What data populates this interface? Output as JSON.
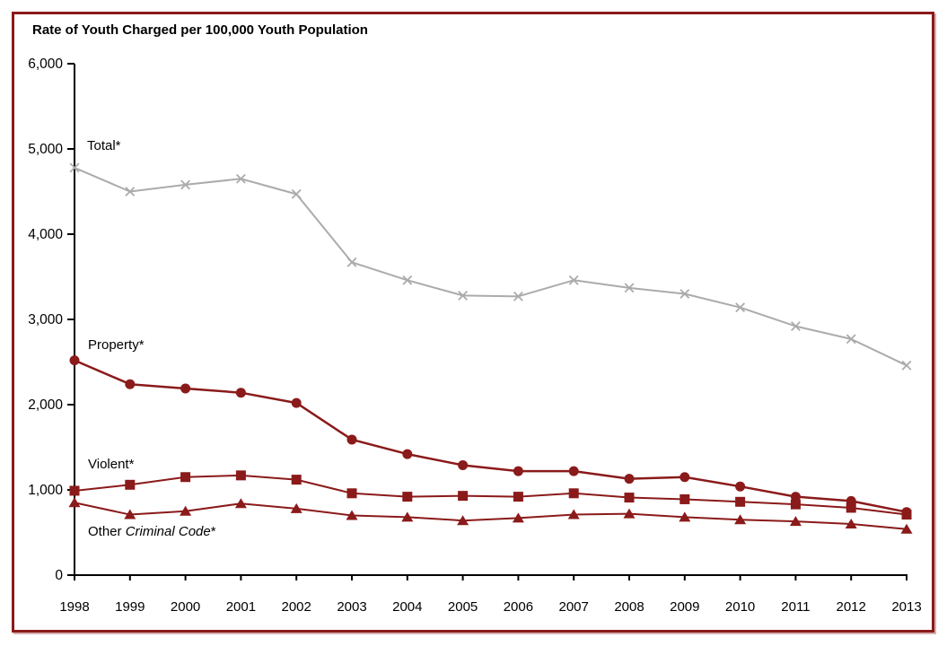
{
  "chart": {
    "title": "Rate of Youth Charged per 100,000 Youth Population",
    "border_color": "#8B1A1A",
    "axis_color": "#000000",
    "background_color": "#ffffff"
  },
  "labels": {
    "total": "Total*",
    "property": "Property*",
    "violent": "Violent*",
    "other_prefix": "Other ",
    "other_italic": "Criminal Code",
    "other_suffix": "*"
  },
  "chart_data": {
    "type": "line",
    "title": "Rate of Youth Charged per 100,000 Youth Population",
    "xlabel": "",
    "ylabel": "Rate of Youth Charged per 100,000 Youth Population",
    "grid": false,
    "legend_position": "inline-annotations",
    "ylim": [
      0,
      6000
    ],
    "y_tick_values": [
      0,
      1000,
      2000,
      3000,
      4000,
      5000,
      6000
    ],
    "y_tick_labels": [
      "0",
      "1,000",
      "2,000",
      "3,000",
      "4,000",
      "5,000",
      "6,000"
    ],
    "categories": [
      "1998",
      "1999",
      "2000",
      "2001",
      "2002",
      "2003",
      "2004",
      "2005",
      "2006",
      "2007",
      "2008",
      "2009",
      "2010",
      "2011",
      "2012",
      "2013"
    ],
    "series": [
      {
        "name": "Total*",
        "marker": "x",
        "color": "#ABABAB",
        "line_width": 2,
        "values": [
          4780,
          4500,
          4580,
          4650,
          4470,
          3670,
          3460,
          3280,
          3270,
          3460,
          3370,
          3300,
          3140,
          2920,
          2770,
          2460
        ]
      },
      {
        "name": "Property*",
        "marker": "circle",
        "color": "#8B1A1A",
        "line_width": 2.5,
        "values": [
          2520,
          2240,
          2190,
          2140,
          2020,
          1590,
          1420,
          1290,
          1220,
          1220,
          1130,
          1150,
          1040,
          920,
          870,
          740
        ]
      },
      {
        "name": "Violent*",
        "marker": "square",
        "color": "#8B1A1A",
        "line_width": 2,
        "values": [
          990,
          1060,
          1150,
          1170,
          1120,
          960,
          920,
          930,
          920,
          960,
          910,
          890,
          860,
          830,
          790,
          710
        ]
      },
      {
        "name": "Other Criminal Code*",
        "marker": "triangle",
        "color": "#8B1A1A",
        "line_width": 2,
        "values": [
          850,
          710,
          750,
          840,
          780,
          700,
          680,
          640,
          670,
          710,
          720,
          680,
          650,
          630,
          600,
          540
        ]
      }
    ]
  }
}
